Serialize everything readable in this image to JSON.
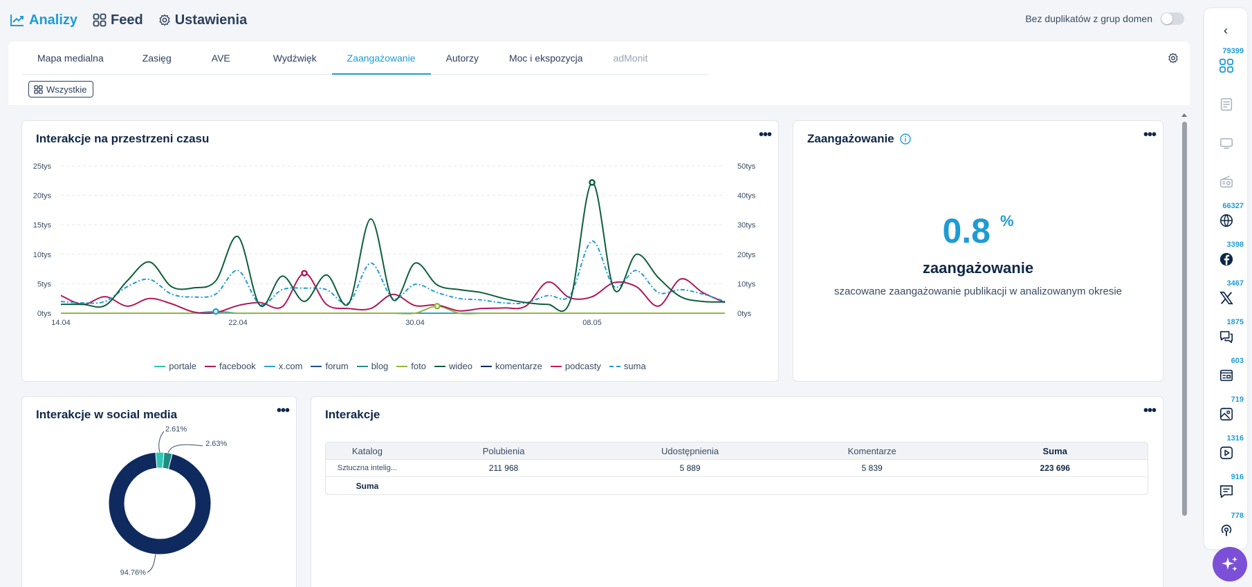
{
  "nav": {
    "items": [
      {
        "label": "Analizy",
        "icon": "chart-line-icon",
        "active": true
      },
      {
        "label": "Feed",
        "icon": "grid-icon"
      },
      {
        "label": "Ustawienia",
        "icon": "gear-icon"
      }
    ],
    "dup_toggle_label": "Bez duplikatów z grup domen"
  },
  "tabs": [
    {
      "label": "Mapa medialna"
    },
    {
      "label": "Zasięg"
    },
    {
      "label": "AVE"
    },
    {
      "label": "Wydźwięk"
    },
    {
      "label": "Zaangażowanie",
      "active": true
    },
    {
      "label": "Autorzy"
    },
    {
      "label": "Moc i ekspozycja"
    },
    {
      "label": "adMonit",
      "disabled": true
    }
  ],
  "filter_chip": "Wszystkie",
  "interactions_chart": {
    "title": "Interakcje na przestrzeni czasu",
    "chart_data": {
      "type": "line",
      "x_ticks": [
        "14.04",
        "22.04",
        "30.04",
        "08.05"
      ],
      "y_left_ticks": [
        "0tys",
        "5tys",
        "10tys",
        "15tys",
        "20tys",
        "25tys"
      ],
      "y_right_ticks": [
        "0tys",
        "10tys",
        "20tys",
        "30tys",
        "40tys",
        "50tys"
      ],
      "ylim_left": [
        0,
        25000
      ],
      "ylim_right": [
        0,
        50000
      ],
      "x": [
        "14.04",
        "15.04",
        "16.04",
        "17.04",
        "18.04",
        "19.04",
        "20.04",
        "21.04",
        "22.04",
        "23.04",
        "24.04",
        "25.04",
        "26.04",
        "27.04",
        "28.04",
        "29.04",
        "30.04",
        "01.05",
        "02.05",
        "03.05",
        "04.05",
        "05.05",
        "06.05",
        "07.05",
        "08.05",
        "09.05",
        "10.05",
        "11.05",
        "12.05",
        "13.05",
        "14.05"
      ],
      "series": [
        {
          "name": "wideo",
          "color": "#0b5e3b",
          "axis": "left",
          "values": [
            1500,
            1500,
            1300,
            5500,
            8700,
            4500,
            4300,
            5500,
            13000,
            1300,
            6300,
            2000,
            6500,
            1600,
            16000,
            2300,
            8500,
            4800,
            4000,
            3500,
            2500,
            1800,
            1500,
            2000,
            22200,
            4000,
            10000,
            6000,
            2800,
            2000,
            1900
          ]
        },
        {
          "name": "facebook",
          "color": "#b0175a",
          "axis": "left",
          "values": [
            3000,
            1500,
            2800,
            1200,
            2500,
            1600,
            200,
            100,
            1300,
            1800,
            1100,
            6800,
            1500,
            800,
            800,
            3200,
            1300,
            1400,
            400,
            800,
            900,
            1200,
            5300,
            2600,
            2800,
            5200,
            4500,
            1200,
            5800,
            3500,
            1800
          ]
        },
        {
          "name": "suma",
          "color": "#1f9bd3",
          "axis": "right",
          "dashed": true,
          "values": [
            4000,
            3500,
            4000,
            9000,
            11500,
            6500,
            5500,
            6500,
            14500,
            3000,
            8000,
            8500,
            8000,
            3500,
            17000,
            5000,
            9800,
            7000,
            5000,
            4500,
            3500,
            3500,
            6000,
            6000,
            24500,
            9000,
            14500,
            7000,
            8000,
            6500,
            4000
          ]
        },
        {
          "name": "foto",
          "color": "#8fb93c",
          "axis": "left",
          "values": [
            0,
            0,
            0,
            0,
            0,
            0,
            0,
            0,
            0,
            0,
            0,
            0,
            0,
            0,
            0,
            0,
            0,
            1200,
            0,
            0,
            0,
            0,
            0,
            0,
            0,
            0,
            0,
            0,
            0,
            0,
            0
          ]
        },
        {
          "name": "x.com",
          "color": "#28a6c9",
          "axis": "left",
          "values": [
            0,
            0,
            0,
            0,
            0,
            0,
            0,
            300,
            0,
            0,
            0,
            0,
            0,
            0,
            0,
            0,
            0,
            0,
            0,
            0,
            0,
            0,
            0,
            0,
            0,
            0,
            0,
            0,
            0,
            0,
            0
          ]
        },
        {
          "name": "portale",
          "color": "#2ec7b3",
          "axis": "left",
          "values": [
            0,
            0,
            0,
            0,
            0,
            0,
            0,
            0,
            0,
            0,
            0,
            0,
            0,
            0,
            0,
            0,
            0,
            0,
            0,
            0,
            0,
            0,
            0,
            0,
            0,
            0,
            0,
            0,
            0,
            0,
            0
          ]
        },
        {
          "name": "forum",
          "color": "#1f4d8f",
          "axis": "left",
          "values": [
            0,
            0,
            0,
            0,
            0,
            0,
            0,
            0,
            0,
            0,
            0,
            0,
            0,
            0,
            0,
            0,
            0,
            0,
            0,
            0,
            0,
            0,
            0,
            0,
            0,
            0,
            0,
            0,
            0,
            0,
            0
          ]
        },
        {
          "name": "blog",
          "color": "#1e8c82",
          "axis": "left",
          "values": [
            0,
            0,
            0,
            0,
            0,
            0,
            0,
            0,
            0,
            0,
            0,
            0,
            0,
            0,
            0,
            0,
            0,
            0,
            0,
            0,
            0,
            0,
            0,
            0,
            0,
            0,
            0,
            0,
            0,
            0,
            0
          ]
        },
        {
          "name": "komentarze",
          "color": "#0f2a5e",
          "axis": "left",
          "values": [
            0,
            0,
            0,
            0,
            0,
            0,
            0,
            0,
            0,
            0,
            0,
            0,
            0,
            0,
            0,
            0,
            0,
            0,
            0,
            0,
            0,
            0,
            0,
            0,
            0,
            0,
            0,
            0,
            0,
            0,
            0
          ]
        },
        {
          "name": "podcasty",
          "color": "#c21e5d",
          "axis": "left",
          "values": [
            0,
            0,
            0,
            0,
            0,
            0,
            0,
            0,
            0,
            0,
            0,
            0,
            0,
            0,
            0,
            0,
            0,
            0,
            0,
            0,
            0,
            0,
            0,
            0,
            0,
            0,
            0,
            0,
            0,
            0,
            0
          ]
        }
      ],
      "legend_order": [
        "portale",
        "facebook",
        "x.com",
        "forum",
        "blog",
        "foto",
        "wideo",
        "komentarze",
        "podcasty",
        "suma"
      ],
      "legend_placement": "bottom",
      "grid": true
    }
  },
  "engagement": {
    "title": "Zaangażowanie",
    "value": "0.8",
    "unit": "%",
    "label": "zaangażowanie",
    "description": "szacowane zaangażowanie publikacji w analizowanym okresie"
  },
  "social_chart": {
    "title": "Interakcje w social media",
    "chart_data": {
      "type": "pie",
      "donut": true,
      "slices": [
        {
          "label": "2.61%",
          "value": 2.61,
          "color": "#2ec7b3"
        },
        {
          "label": "2.63%",
          "value": 2.63,
          "color": "#1e8c82"
        },
        {
          "label": "94.76%",
          "value": 94.76,
          "color": "#0f2a5e"
        }
      ]
    }
  },
  "interactions_table": {
    "title": "Interakcje",
    "headers": [
      "Katalog",
      "Polubienia",
      "Udostępnienia",
      "Komentarze",
      "Suma"
    ],
    "rows": [
      [
        "Sztuczna intelig...",
        "211 968",
        "5 889",
        "5 839",
        "223 696"
      ]
    ],
    "total_label": "Suma"
  },
  "sidebar": {
    "items": [
      {
        "count": "79399",
        "icon": "all-sources-icon"
      },
      {
        "count": "",
        "icon": "press-icon"
      },
      {
        "count": "",
        "icon": "tv-icon"
      },
      {
        "count": "",
        "icon": "radio-icon"
      },
      {
        "count": "66327",
        "icon": "globe-icon"
      },
      {
        "count": "3398",
        "icon": "facebook-icon"
      },
      {
        "count": "3467",
        "icon": "x-icon"
      },
      {
        "count": "1875",
        "icon": "forum-icon"
      },
      {
        "count": "603",
        "icon": "blog-icon"
      },
      {
        "count": "719",
        "icon": "photo-icon"
      },
      {
        "count": "1316",
        "icon": "video-icon"
      },
      {
        "count": "916",
        "icon": "comments-icon"
      },
      {
        "count": "778",
        "icon": "podcast-icon"
      }
    ]
  }
}
